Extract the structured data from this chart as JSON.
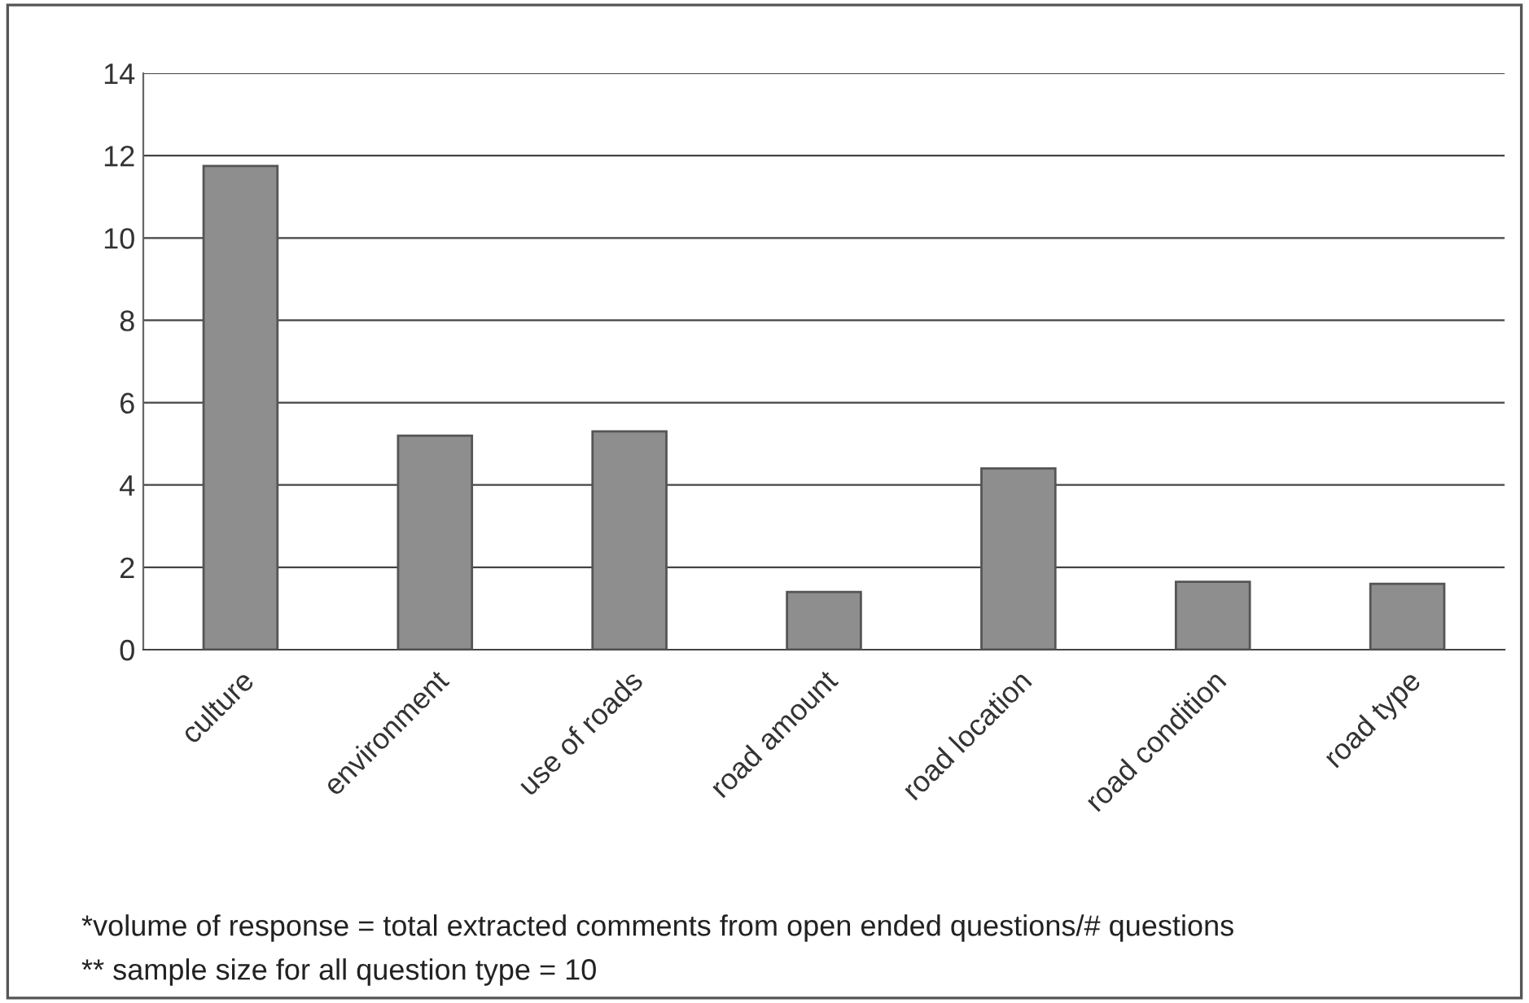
{
  "chart_data": {
    "type": "bar",
    "categories": [
      "culture",
      "environment",
      "use of roads",
      "road amount",
      "road location",
      "road condition",
      "road type"
    ],
    "values": [
      11.75,
      5.2,
      5.3,
      1.4,
      4.4,
      1.65,
      1.6
    ],
    "color": "#8e8e8e",
    "ylim": [
      0,
      14
    ],
    "yticks": [
      0,
      2,
      4,
      6,
      8,
      10,
      12,
      14
    ],
    "grid": "y",
    "annotations": [
      "*volume of response = total extracted comments from open ended questions/# questions",
      "** sample size for all question type = 10"
    ]
  }
}
